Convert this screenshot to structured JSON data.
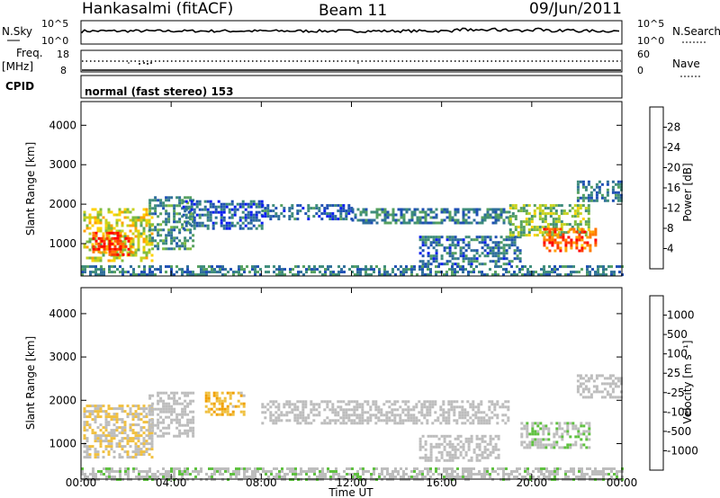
{
  "header": {
    "station": "Hankasalmi (fitACF)",
    "beam": "Beam 11",
    "date": "09/Jun/2011"
  },
  "top_panels": {
    "nsky_label": "N.Sky",
    "nsearch_label": "N.Search",
    "nsky_ticks": [
      "10^5",
      "10^0"
    ],
    "nsearch_ticks": [
      "10^5",
      "10^0"
    ],
    "freq_label_1": "Freq.",
    "freq_label_2": "[MHz]",
    "freq_ticks": [
      "18",
      "8"
    ],
    "nave_label": "Nave",
    "nave_ticks": [
      "60",
      "0"
    ],
    "cpid_label": "CPID",
    "cpid_text": "normal (fast stereo) 153"
  },
  "colorbars": {
    "power": {
      "label": "Power [dB]",
      "ticks": [
        "28",
        "24",
        "20",
        "16",
        "12",
        "8",
        "4"
      ],
      "colors": [
        "#0a1ef0",
        "#1e4fb4",
        "#2f6f9a",
        "#3e8c7a",
        "#55a060",
        "#7fbb3e",
        "#c8d21e",
        "#ffd200",
        "#ffa000",
        "#ff7800",
        "#ff3c00",
        "#ff0000"
      ]
    },
    "velocity": {
      "label": "Velocity [m s⁻¹]",
      "ticks": [
        "1000",
        "500",
        "100",
        "25",
        "-25",
        "-100",
        "-500",
        "-1000"
      ],
      "colors": [
        "#1010d0",
        "#2050b8",
        "#2e7a8c",
        "#36a060",
        "#5fc040",
        "#bdbdbd",
        "#bdbdbd",
        "#f0c040",
        "#f0a000",
        "#ff7800",
        "#ff4000",
        "#ff0000"
      ]
    }
  },
  "chart_data": [
    {
      "type": "heatmap",
      "title": "",
      "quantity": "Power",
      "xlabel": "Time UT",
      "ylabel": "Slant Range [km]",
      "x_ticks": [
        "00:00",
        "04:00",
        "08:00",
        "12:00",
        "16:00",
        "20:00",
        "00:00"
      ],
      "y_ticks": [
        "4000",
        "3000",
        "2000",
        "1000"
      ],
      "xlim_hours": [
        0,
        24
      ],
      "ylim_km": [
        180,
        4600
      ],
      "regions": [
        {
          "t": [
            0.1,
            3.2
          ],
          "r": [
            600,
            1900
          ],
          "v": 18
        },
        {
          "t": [
            0.5,
            2.2
          ],
          "r": [
            700,
            1300
          ],
          "v": 28
        },
        {
          "t": [
            3.0,
            5.0
          ],
          "r": [
            900,
            2200
          ],
          "v": 10
        },
        {
          "t": [
            4.5,
            8.0
          ],
          "r": [
            1400,
            2100
          ],
          "v": 6
        },
        {
          "t": [
            8.0,
            12.0
          ],
          "r": [
            1600,
            2000
          ],
          "v": 6
        },
        {
          "t": [
            12.0,
            19.0
          ],
          "r": [
            1500,
            1900
          ],
          "v": 8
        },
        {
          "t": [
            15.0,
            19.5
          ],
          "r": [
            500,
            1200
          ],
          "v": 7
        },
        {
          "t": [
            19.0,
            22.5
          ],
          "r": [
            1200,
            2000
          ],
          "v": 14
        },
        {
          "t": [
            20.5,
            22.8
          ],
          "r": [
            800,
            1400
          ],
          "v": 26
        },
        {
          "t": [
            22.0,
            24.0
          ],
          "r": [
            2100,
            2600
          ],
          "v": 8
        },
        {
          "t": [
            0.0,
            24.0
          ],
          "r": [
            200,
            450
          ],
          "v": 8
        }
      ]
    },
    {
      "type": "heatmap",
      "title": "",
      "quantity": "Velocity",
      "xlabel": "Time UT",
      "ylabel": "Slant Range [km]",
      "x_ticks": [
        "00:00",
        "04:00",
        "08:00",
        "12:00",
        "16:00",
        "20:00",
        "00:00"
      ],
      "y_ticks": [
        "4000",
        "3000",
        "2000",
        "1000"
      ],
      "xlim_hours": [
        0,
        24
      ],
      "ylim_km": [
        180,
        4600
      ],
      "regions": [
        {
          "t": [
            0.1,
            3.2
          ],
          "r": [
            700,
            1900
          ],
          "v": -150
        },
        {
          "t": [
            3.0,
            5.0
          ],
          "r": [
            1200,
            2200
          ],
          "v": 0
        },
        {
          "t": [
            5.5,
            7.2
          ],
          "r": [
            1700,
            2200
          ],
          "v": -300
        },
        {
          "t": [
            8.0,
            19.0
          ],
          "r": [
            1500,
            2000
          ],
          "v": 0
        },
        {
          "t": [
            15.0,
            18.5
          ],
          "r": [
            600,
            1200
          ],
          "v": 0
        },
        {
          "t": [
            19.5,
            22.5
          ],
          "r": [
            900,
            1500
          ],
          "v": 120
        },
        {
          "t": [
            22.0,
            24.0
          ],
          "r": [
            2100,
            2600
          ],
          "v": 0
        },
        {
          "t": [
            0.0,
            24.0
          ],
          "r": [
            200,
            450
          ],
          "v": 80
        }
      ]
    }
  ]
}
